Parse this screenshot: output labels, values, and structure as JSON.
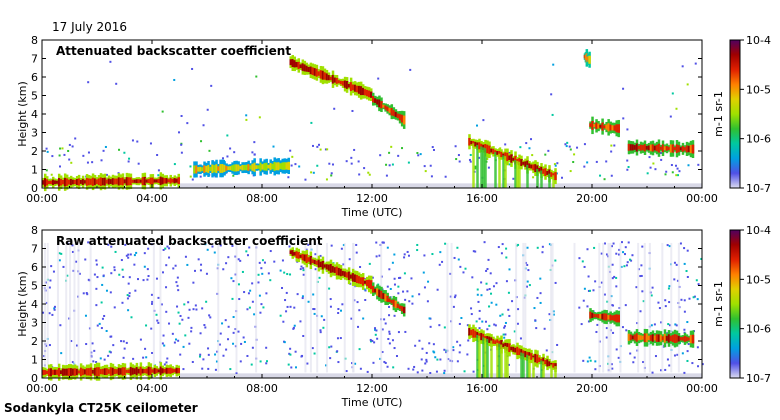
{
  "date": "17 July 2016",
  "footer": "Sodankyla CT25K ceilometer",
  "colors": {
    "scale": [
      "#dcdcf0",
      "#5050e6",
      "#00a0e0",
      "#00c8a0",
      "#30c030",
      "#a0e000",
      "#e0d000",
      "#ff8000",
      "#e02000",
      "#a00000",
      "#500060"
    ],
    "background_noise": "#d8d8e6"
  },
  "chart_data": [
    {
      "type": "heatmap",
      "title": "Attenuated backscatter coefficient",
      "xlabel": "Time (UTC)",
      "ylabel": "Height (km)",
      "x_ticks": [
        "00:00",
        "04:00",
        "08:00",
        "12:00",
        "16:00",
        "20:00",
        "00:00"
      ],
      "y_ticks": [
        "0",
        "1",
        "2",
        "3",
        "4",
        "5",
        "6",
        "7",
        "8"
      ],
      "xlim_hours": [
        0,
        24
      ],
      "ylim_km": [
        0,
        8
      ],
      "colorbar": {
        "labels": [
          "10-4",
          "10-5",
          "10-6",
          "10-7"
        ],
        "unit": "m-1 sr-1",
        "range": [
          1e-07,
          0.0001
        ],
        "scale": "log"
      },
      "features": [
        {
          "name": "boundary layer",
          "t_start": 0.0,
          "t_end": 5.0,
          "h_start_km": 0.3,
          "h_end_km": 0.4,
          "intensity": 0.95
        },
        {
          "name": "low cloud",
          "t_start": 5.5,
          "t_end": 9.0,
          "h_start_km": 1.0,
          "h_end_km": 1.2,
          "intensity": 0.7
        },
        {
          "name": "mid cloud",
          "t_start": 9.0,
          "t_end": 12.0,
          "h_start_km": 6.8,
          "h_end_km": 5.0,
          "intensity": 0.95
        },
        {
          "name": "mid cloud",
          "t_start": 12.0,
          "t_end": 13.2,
          "h_start_km": 4.8,
          "h_end_km": 3.6,
          "intensity": 0.9
        },
        {
          "name": "falling cloud",
          "t_start": 15.5,
          "t_end": 18.7,
          "h_start_km": 2.5,
          "h_end_km": 0.6,
          "intensity": 0.95
        },
        {
          "name": "high cloud",
          "t_start": 19.7,
          "t_end": 19.9,
          "h_start_km": 7.1,
          "h_end_km": 6.9,
          "intensity": 0.8
        },
        {
          "name": "cloud layer",
          "t_start": 19.9,
          "t_end": 21.0,
          "h_start_km": 3.4,
          "h_end_km": 3.2,
          "intensity": 0.9
        },
        {
          "name": "cloud layer",
          "t_start": 21.3,
          "t_end": 23.7,
          "h_start_km": 2.2,
          "h_end_km": 2.1,
          "intensity": 0.9
        }
      ]
    },
    {
      "type": "heatmap",
      "title": "Raw attenuated backscatter coefficient",
      "xlabel": "Time (UTC)",
      "ylabel": "Height (km)",
      "x_ticks": [
        "00:00",
        "04:00",
        "08:00",
        "12:00",
        "16:00",
        "20:00",
        "00:00"
      ],
      "y_ticks": [
        "0",
        "1",
        "2",
        "3",
        "4",
        "5",
        "6",
        "7",
        "8"
      ],
      "xlim_hours": [
        0,
        24
      ],
      "ylim_km": [
        0,
        8
      ],
      "colorbar": {
        "labels": [
          "10-4",
          "10-5",
          "10-6",
          "10-7"
        ],
        "unit": "m-1 sr-1",
        "range": [
          1e-07,
          0.0001
        ],
        "scale": "log"
      },
      "features": [
        {
          "name": "boundary layer",
          "t_start": 0.0,
          "t_end": 5.0,
          "h_start_km": 0.3,
          "h_end_km": 0.4,
          "intensity": 0.95
        },
        {
          "name": "mid cloud",
          "t_start": 9.0,
          "t_end": 12.0,
          "h_start_km": 6.8,
          "h_end_km": 5.0,
          "intensity": 0.95
        },
        {
          "name": "mid cloud",
          "t_start": 12.0,
          "t_end": 13.2,
          "h_start_km": 4.8,
          "h_end_km": 3.6,
          "intensity": 0.9
        },
        {
          "name": "falling cloud",
          "t_start": 15.5,
          "t_end": 18.7,
          "h_start_km": 2.5,
          "h_end_km": 0.6,
          "intensity": 0.95
        },
        {
          "name": "cloud layer",
          "t_start": 19.9,
          "t_end": 21.0,
          "h_start_km": 3.4,
          "h_end_km": 3.2,
          "intensity": 0.9
        },
        {
          "name": "cloud layer",
          "t_start": 21.3,
          "t_end": 23.7,
          "h_start_km": 2.2,
          "h_end_km": 2.1,
          "intensity": 0.9
        }
      ]
    }
  ]
}
